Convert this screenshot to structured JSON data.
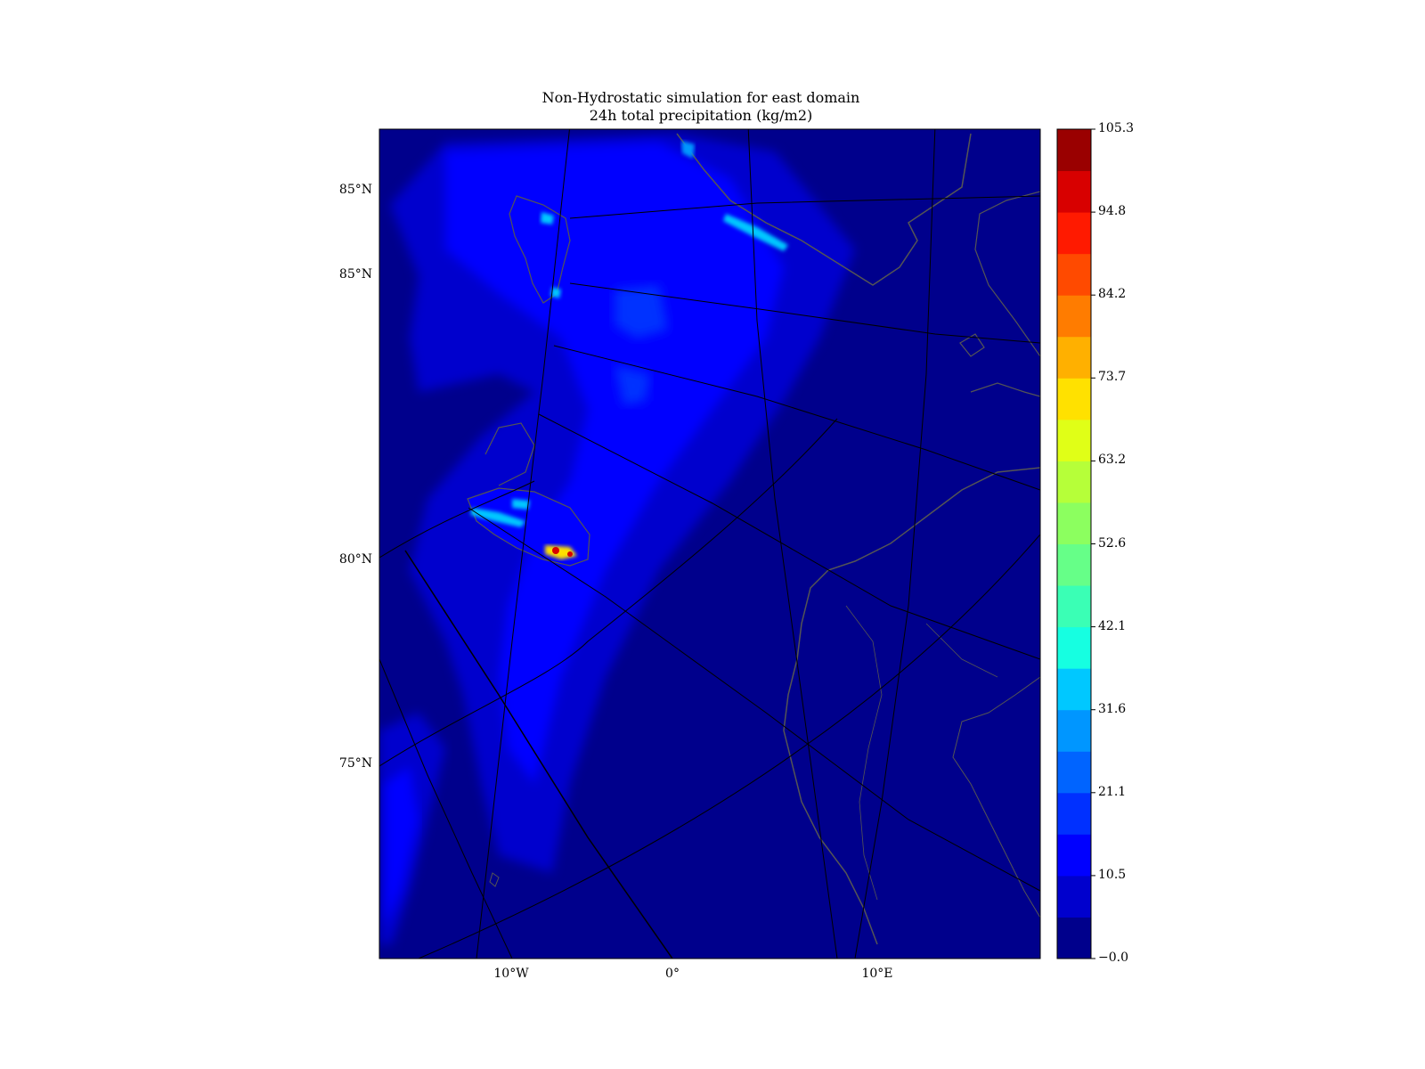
{
  "title": {
    "line1": "Non-Hydrostatic simulation for east domain",
    "line2": "24h total precipitation (kg/m2)"
  },
  "map": {
    "latitude_labels": [
      "85°N",
      "85°N",
      "80°N",
      "75°N"
    ],
    "longitude_labels": [
      "10°W",
      "0°",
      "10°E"
    ],
    "coastline_color": "#555555",
    "background_color": "#00008c"
  },
  "colorbar": {
    "tick_labels": [
      "−0.0",
      "10.5",
      "21.1",
      "31.6",
      "42.1",
      "52.6",
      "63.2",
      "73.7",
      "84.2",
      "94.8",
      "105.3"
    ],
    "colors": [
      "#00008c",
      "#0000cd",
      "#0000ff",
      "#0030ff",
      "#0064ff",
      "#0096ff",
      "#00c8ff",
      "#16ffe1",
      "#3affb5",
      "#66ff88",
      "#8cff5f",
      "#b6ff39",
      "#e0ff17",
      "#ffe100",
      "#ffb000",
      "#ff7c00",
      "#ff4a00",
      "#ff1a00",
      "#d80000",
      "#9a0000"
    ],
    "min": 0.0,
    "max": 105.3
  }
}
